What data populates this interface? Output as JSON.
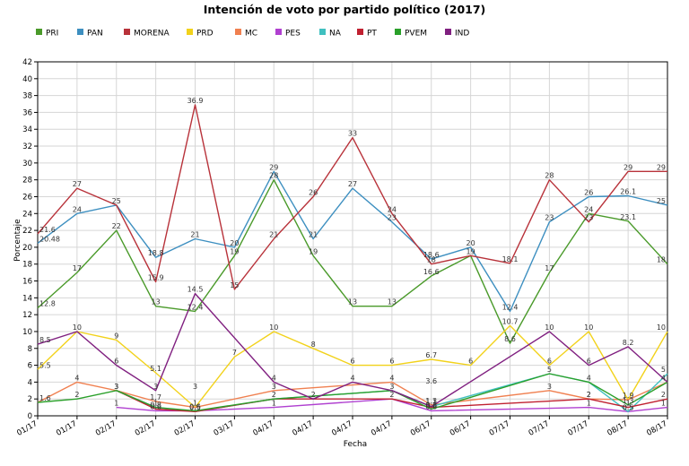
{
  "chart_data": {
    "type": "line",
    "title": "Intención de voto por partido político (2017)",
    "xlabel": "Fecha",
    "ylabel": "Porcentaje",
    "ylim": [
      0,
      42
    ],
    "yticks": [
      0,
      2,
      4,
      6,
      8,
      10,
      12,
      14,
      16,
      18,
      20,
      22,
      24,
      26,
      28,
      30,
      32,
      34,
      36,
      38,
      40,
      42
    ],
    "grid": true,
    "legend_position": "top",
    "categories": [
      "01/17",
      "01/17",
      "02/17",
      "02/17",
      "02/17",
      "03/17",
      "04/17",
      "04/17",
      "04/17",
      "04/17",
      "06/17",
      "06/17",
      "07/17",
      "07/17",
      "07/17",
      "08/17",
      "08/17"
    ],
    "series": [
      {
        "name": "PRI",
        "color": "#4a9a2a",
        "values": [
          12.8,
          17,
          22,
          13,
          12.4,
          19,
          28,
          19,
          13,
          13,
          16.6,
          19,
          8.6,
          17,
          24,
          23.1,
          18
        ]
      },
      {
        "name": "PAN",
        "color": "#3d8fc0",
        "values": [
          20.48,
          24,
          25,
          18.8,
          21,
          20,
          29,
          21,
          27,
          23,
          18.6,
          20,
          12.4,
          23,
          26,
          26.1,
          25
        ]
      },
      {
        "name": "MORENA",
        "color": "#b8323a",
        "values": [
          21.6,
          27,
          25,
          15.9,
          36.9,
          15,
          21,
          26,
          33,
          24,
          18,
          19,
          18.1,
          28,
          23,
          29,
          29
        ]
      },
      {
        "name": "PRD",
        "color": "#f2d21b",
        "values": [
          5.5,
          10,
          9,
          5.1,
          1,
          7,
          10,
          8,
          6,
          6,
          6.7,
          6,
          10.7,
          6,
          10,
          1.9,
          10
        ]
      },
      {
        "name": "MC",
        "color": "#f08050",
        "values": [
          1.6,
          4,
          3,
          1.7,
          1,
          null,
          3,
          null,
          null,
          4,
          1.3,
          null,
          null,
          3,
          2,
          1.9,
          4
        ]
      },
      {
        "name": "PES",
        "color": "#b040d0",
        "values": [
          null,
          null,
          1,
          0.6,
          0.6,
          null,
          1,
          null,
          null,
          2,
          0.6,
          null,
          null,
          null,
          1,
          0.5,
          1
        ]
      },
      {
        "name": "NA",
        "color": "#40c0c0",
        "values": [
          null,
          null,
          3,
          1,
          0.5,
          null,
          2,
          null,
          null,
          3,
          1.1,
          null,
          null,
          5,
          4,
          0.5,
          5
        ]
      },
      {
        "name": "PT",
        "color": "#c02030",
        "values": [
          null,
          null,
          3,
          0.8,
          0.5,
          null,
          2,
          null,
          null,
          2,
          1,
          null,
          null,
          null,
          2,
          1,
          2
        ]
      },
      {
        "name": "PVEM",
        "color": "#2aa02a",
        "values": [
          1.6,
          2,
          3,
          1,
          0.6,
          null,
          2,
          null,
          null,
          3,
          0.8,
          null,
          null,
          5,
          4,
          1.3,
          4
        ]
      },
      {
        "name": "IND",
        "color": "#802080",
        "values": [
          8.5,
          10,
          6,
          3,
          14.5,
          null,
          4,
          2,
          4,
          3,
          1.1,
          null,
          null,
          10,
          6,
          8.2,
          4
        ]
      }
    ],
    "data_labels": [
      {
        "i": 0,
        "y": 12.8,
        "t": "12.8"
      },
      {
        "i": 1,
        "y": 17,
        "t": "17"
      },
      {
        "i": 2,
        "y": 22,
        "t": "22"
      },
      {
        "i": 3,
        "y": 13,
        "t": "13"
      },
      {
        "i": 4,
        "y": 12.4,
        "t": "12.4"
      },
      {
        "i": 5,
        "y": 19,
        "t": "19"
      },
      {
        "i": 7,
        "y": 19,
        "t": "19"
      },
      {
        "i": 8,
        "y": 13,
        "t": "13"
      },
      {
        "i": 9,
        "y": 13,
        "t": "13"
      },
      {
        "i": 10,
        "y": 16.6,
        "t": "16.6"
      },
      {
        "i": 11,
        "y": 19,
        "t": "19"
      },
      {
        "i": 12,
        "y": 8.6,
        "t": "8.6"
      },
      {
        "i": 13,
        "y": 17,
        "t": "17"
      },
      {
        "i": 14,
        "y": 24,
        "t": "24"
      },
      {
        "i": 15,
        "y": 23.1,
        "t": "23.1"
      },
      {
        "i": 16,
        "y": 18,
        "t": "18"
      },
      {
        "i": 0,
        "y": 20.48,
        "t": "20.48"
      },
      {
        "i": 1,
        "y": 24,
        "t": "24"
      },
      {
        "i": 2,
        "y": 25,
        "t": "25"
      },
      {
        "i": 3,
        "y": 18.8,
        "t": "18.8"
      },
      {
        "i": 4,
        "y": 21,
        "t": "21"
      },
      {
        "i": 5,
        "y": 20,
        "t": "20"
      },
      {
        "i": 6,
        "y": 29,
        "t": "29"
      },
      {
        "i": 6,
        "y": 28,
        "t": "28"
      },
      {
        "i": 7,
        "y": 21,
        "t": "21"
      },
      {
        "i": 8,
        "y": 27,
        "t": "27"
      },
      {
        "i": 9,
        "y": 23,
        "t": "23"
      },
      {
        "i": 10,
        "y": 18.6,
        "t": "18.6"
      },
      {
        "i": 11,
        "y": 20,
        "t": "20"
      },
      {
        "i": 12,
        "y": 12.4,
        "t": "12.4"
      },
      {
        "i": 13,
        "y": 23,
        "t": "23"
      },
      {
        "i": 14,
        "y": 26,
        "t": "26"
      },
      {
        "i": 15,
        "y": 26.1,
        "t": "26.1"
      },
      {
        "i": 16,
        "y": 25,
        "t": "25"
      },
      {
        "i": 0,
        "y": 21.6,
        "t": "21.6"
      },
      {
        "i": 1,
        "y": 27,
        "t": "27"
      },
      {
        "i": 3,
        "y": 15.9,
        "t": "15.9"
      },
      {
        "i": 4,
        "y": 36.9,
        "t": "36.9"
      },
      {
        "i": 5,
        "y": 15,
        "t": "15"
      },
      {
        "i": 6,
        "y": 21,
        "t": "21"
      },
      {
        "i": 7,
        "y": 26,
        "t": "26"
      },
      {
        "i": 8,
        "y": 33,
        "t": "33"
      },
      {
        "i": 9,
        "y": 24,
        "t": "24"
      },
      {
        "i": 10,
        "y": 18,
        "t": "18"
      },
      {
        "i": 12,
        "y": 18.1,
        "t": "18.1"
      },
      {
        "i": 13,
        "y": 28,
        "t": "28"
      },
      {
        "i": 14,
        "y": 23,
        "t": "23"
      },
      {
        "i": 15,
        "y": 29,
        "t": "29"
      },
      {
        "i": 16,
        "y": 29,
        "t": "29"
      },
      {
        "i": 0,
        "y": 5.5,
        "t": "5.5"
      },
      {
        "i": 1,
        "y": 10,
        "t": "10"
      },
      {
        "i": 2,
        "y": 9,
        "t": "9"
      },
      {
        "i": 3,
        "y": 5.1,
        "t": "5.1"
      },
      {
        "i": 5,
        "y": 7,
        "t": "7"
      },
      {
        "i": 6,
        "y": 10,
        "t": "10"
      },
      {
        "i": 7,
        "y": 8,
        "t": "8"
      },
      {
        "i": 8,
        "y": 6,
        "t": "6"
      },
      {
        "i": 9,
        "y": 6,
        "t": "6"
      },
      {
        "i": 10,
        "y": 6.7,
        "t": "6.7"
      },
      {
        "i": 11,
        "y": 6,
        "t": "6"
      },
      {
        "i": 12,
        "y": 10.7,
        "t": "10.7"
      },
      {
        "i": 13,
        "y": 6,
        "t": "6"
      },
      {
        "i": 14,
        "y": 10,
        "t": "10"
      },
      {
        "i": 16,
        "y": 10,
        "t": "10"
      },
      {
        "i": 0,
        "y": 8.5,
        "t": "8.5"
      },
      {
        "i": 2,
        "y": 6,
        "t": "6"
      },
      {
        "i": 4,
        "y": 14.5,
        "t": "14.5"
      },
      {
        "i": 13,
        "y": 10,
        "t": "10"
      },
      {
        "i": 14,
        "y": 6,
        "t": "6"
      },
      {
        "i": 15,
        "y": 8.2,
        "t": "8.2"
      },
      {
        "i": 16,
        "y": 5,
        "t": "5"
      },
      {
        "i": 0,
        "y": 1.6,
        "t": "1.6"
      },
      {
        "i": 1,
        "y": 4,
        "t": "4"
      },
      {
        "i": 1,
        "y": 2,
        "t": "2"
      },
      {
        "i": 2,
        "y": 3,
        "t": "3"
      },
      {
        "i": 2,
        "y": 3,
        "t": "3"
      },
      {
        "i": 2,
        "y": 1,
        "t": "1"
      },
      {
        "i": 3,
        "y": 3,
        "t": "3"
      },
      {
        "i": 3,
        "y": 1.7,
        "t": "1.7"
      },
      {
        "i": 3,
        "y": 1,
        "t": "1"
      },
      {
        "i": 3,
        "y": 0.8,
        "t": "0.8"
      },
      {
        "i": 3,
        "y": 0.6,
        "t": "0.6"
      },
      {
        "i": 4,
        "y": 3,
        "t": "3"
      },
      {
        "i": 4,
        "y": 1,
        "t": "1"
      },
      {
        "i": 4,
        "y": 0.6,
        "t": "0.6"
      },
      {
        "i": 4,
        "y": 0.5,
        "t": "0.5"
      },
      {
        "i": 6,
        "y": 4,
        "t": "4"
      },
      {
        "i": 6,
        "y": 3,
        "t": "3"
      },
      {
        "i": 6,
        "y": 2,
        "t": "2"
      },
      {
        "i": 6,
        "y": 1,
        "t": "1"
      },
      {
        "i": 7,
        "y": 2,
        "t": "2"
      },
      {
        "i": 8,
        "y": 4,
        "t": "4"
      },
      {
        "i": 9,
        "y": 4,
        "t": "4"
      },
      {
        "i": 9,
        "y": 3,
        "t": "3"
      },
      {
        "i": 9,
        "y": 2,
        "t": "2"
      },
      {
        "i": 10,
        "y": 3.6,
        "t": "3.6"
      },
      {
        "i": 10,
        "y": 1.3,
        "t": "1.3"
      },
      {
        "i": 10,
        "y": 1.1,
        "t": "1.1"
      },
      {
        "i": 10,
        "y": 0.8,
        "t": "0.8"
      },
      {
        "i": 10,
        "y": 0.6,
        "t": "0.6"
      },
      {
        "i": 13,
        "y": 5,
        "t": "5"
      },
      {
        "i": 13,
        "y": 3,
        "t": "3"
      },
      {
        "i": 14,
        "y": 4,
        "t": "4"
      },
      {
        "i": 14,
        "y": 2,
        "t": "2"
      },
      {
        "i": 14,
        "y": 2,
        "t": "2"
      },
      {
        "i": 14,
        "y": 1,
        "t": "1"
      },
      {
        "i": 15,
        "y": 1.9,
        "t": "1.9"
      },
      {
        "i": 15,
        "y": 1.3,
        "t": "1.3"
      },
      {
        "i": 15,
        "y": 1,
        "t": "1"
      },
      {
        "i": 15,
        "y": 0.5,
        "t": "0.5"
      },
      {
        "i": 15,
        "y": 0.5,
        "t": "0.5"
      },
      {
        "i": 16,
        "y": 4,
        "t": "4"
      },
      {
        "i": 16,
        "y": 2,
        "t": "2"
      },
      {
        "i": 16,
        "y": 1,
        "t": "1"
      }
    ]
  }
}
